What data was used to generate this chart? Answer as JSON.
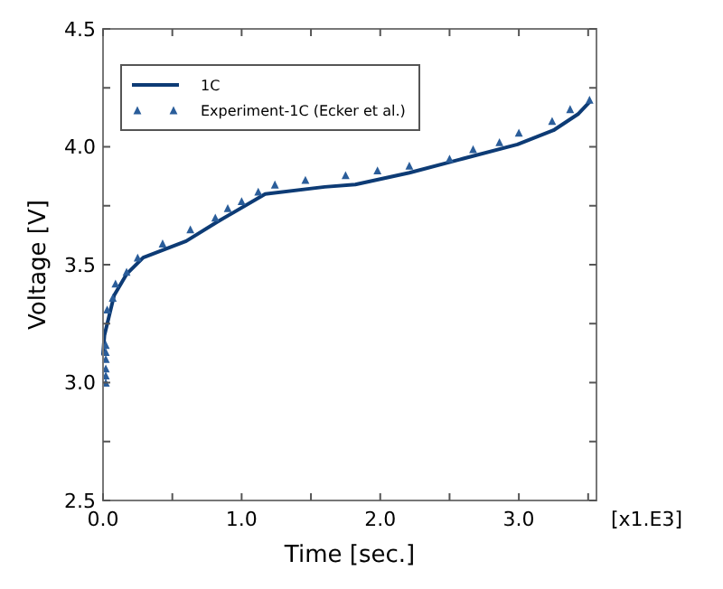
{
  "chart_data": {
    "type": "line",
    "xlabel": "Time [sec.]",
    "ylabel": "Voltage [V]",
    "annotations": [
      "[x1.E3]"
    ],
    "xlim": [
      0,
      3.56
    ],
    "ylim": [
      2.5,
      4.5
    ],
    "xticks": [
      {
        "value": 0,
        "label": "0.0"
      },
      {
        "value": 0.5,
        "label": null
      },
      {
        "value": 1,
        "label": "1.0"
      },
      {
        "value": 1.5,
        "label": null
      },
      {
        "value": 2,
        "label": "2.0"
      },
      {
        "value": 2.5,
        "label": null
      },
      {
        "value": 3,
        "label": "3.0"
      },
      {
        "value": 3.5,
        "label": null
      }
    ],
    "yticks": [
      2.5,
      {
        "value": 2.75,
        "label": null
      },
      {
        "value": 3,
        "label": "3.0"
      },
      {
        "value": 3.25,
        "label": null
      },
      3.5,
      {
        "value": 3.75,
        "label": null
      },
      {
        "value": 4,
        "label": "4.0"
      },
      {
        "value": 4.25,
        "label": null
      },
      4.5
    ],
    "grid": false,
    "legend": "top left",
    "series": [
      {
        "name": "1C",
        "color": "#0d3b75",
        "line_style": "solid",
        "marker": "none",
        "x": [
          0,
          0.01,
          0.08,
          0.17,
          0.29,
          0.6,
          0.82,
          1.17,
          1.6,
          1.82,
          2.21,
          2.6,
          2.99,
          3.25,
          3.43,
          3.51
        ],
        "values": [
          3.12,
          3.2,
          3.37,
          3.46,
          3.53,
          3.6,
          3.68,
          3.8,
          3.83,
          3.84,
          3.89,
          3.95,
          4.01,
          4.07,
          4.14,
          4.19
        ]
      },
      {
        "name": "Experiment-1C (Ecker et al.)",
        "type": "scatter",
        "color": "#2a5d9a",
        "marker": "triangle",
        "x": [
          0.02,
          0.02,
          0.02,
          0.02,
          0.02,
          0.02,
          0.03,
          0.07,
          0.09,
          0.17,
          0.25,
          0.43,
          0.63,
          0.81,
          0.9,
          1.0,
          1.12,
          1.24,
          1.46,
          1.75,
          1.98,
          2.21,
          2.5,
          2.67,
          2.86,
          3.0,
          3.24,
          3.37,
          3.51
        ],
        "values": [
          3.0,
          3.03,
          3.06,
          3.1,
          3.13,
          3.16,
          3.31,
          3.36,
          3.42,
          3.47,
          3.53,
          3.59,
          3.65,
          3.7,
          3.74,
          3.77,
          3.81,
          3.84,
          3.86,
          3.88,
          3.9,
          3.92,
          3.95,
          3.99,
          4.02,
          4.06,
          4.11,
          4.16,
          4.2
        ]
      }
    ]
  }
}
